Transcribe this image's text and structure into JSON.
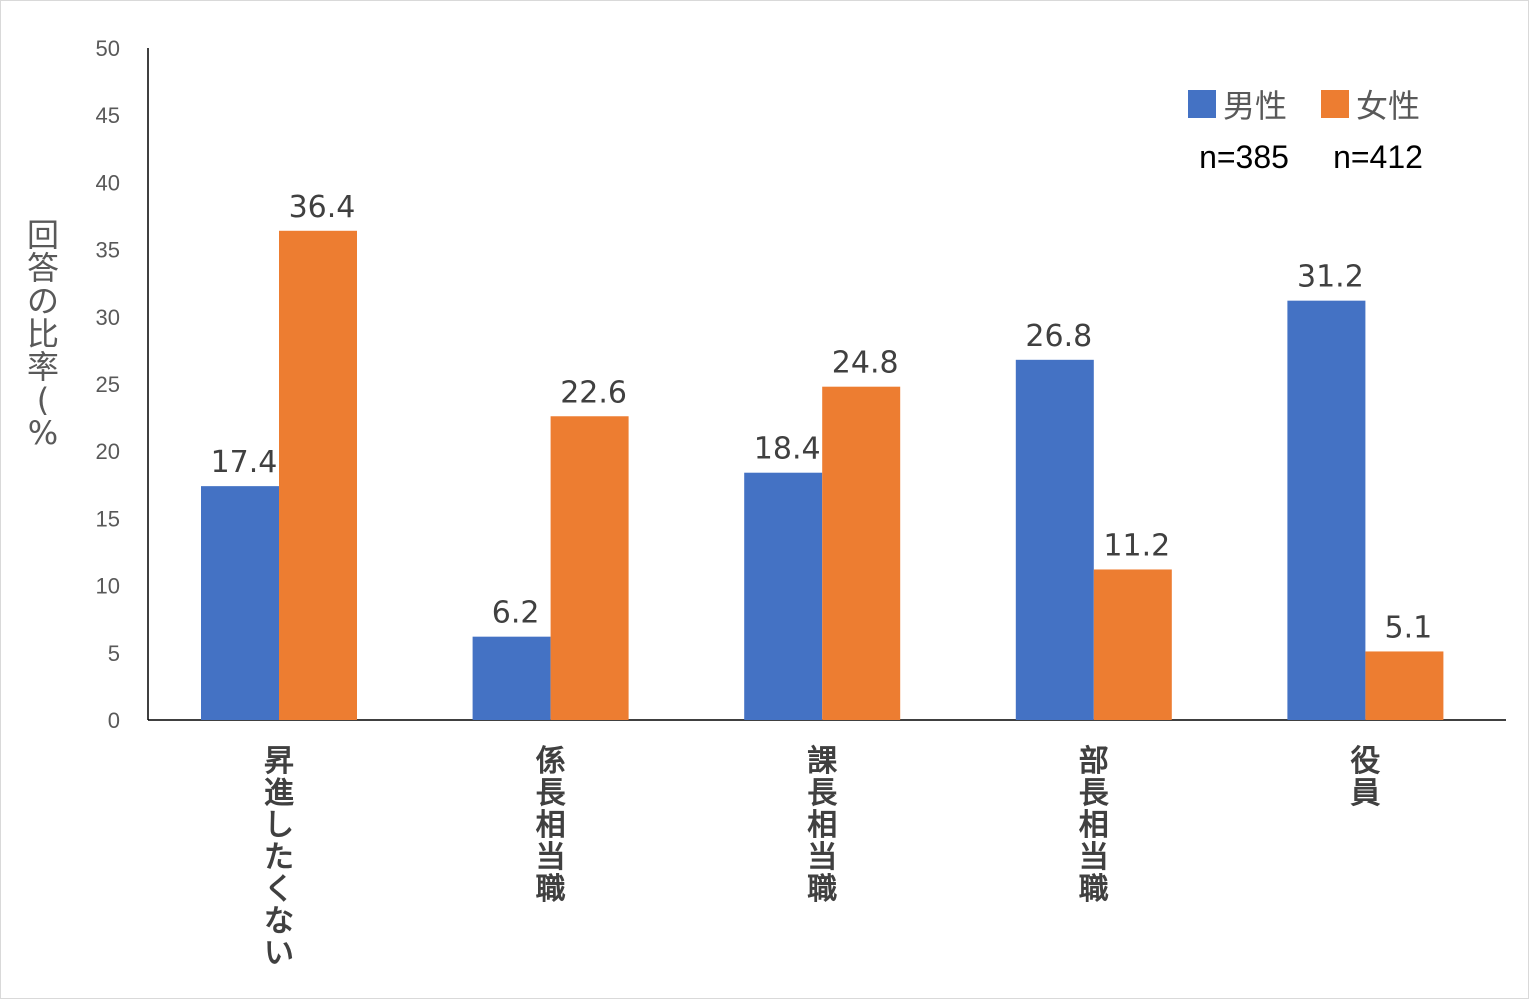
{
  "chart_data": {
    "type": "bar",
    "categories": [
      "昇進したくない",
      "係長相当職",
      "課長相当職",
      "部長相当職",
      "役員"
    ],
    "series": [
      {
        "name": "男性",
        "values": [
          17.4,
          6.2,
          18.4,
          26.8,
          31.2
        ],
        "color": "#4472c4"
      },
      {
        "name": "女性",
        "values": [
          36.4,
          22.6,
          24.8,
          11.2,
          5.1
        ],
        "color": "#ed7d31"
      }
    ],
    "title": "",
    "xlabel": "",
    "ylabel": "回答の比率(%",
    "ylim": [
      0,
      50
    ],
    "yticks": [
      0,
      5,
      10,
      15,
      20,
      25,
      30,
      35,
      40,
      45,
      50
    ],
    "grid": false,
    "legend": "top-right",
    "notes": [
      "n=385",
      "n=412"
    ]
  }
}
